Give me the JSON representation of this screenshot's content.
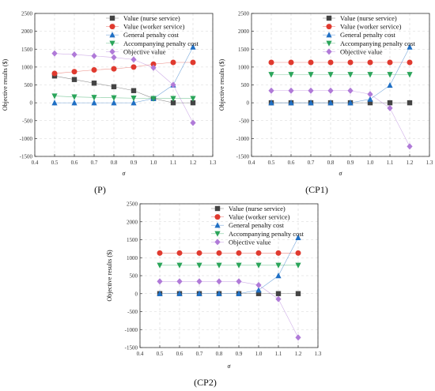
{
  "chart_data": [
    {
      "type": "line",
      "caption": "(P)",
      "xlabel": "σ",
      "ylabel": "Objective results ($)",
      "xlim": [
        0.4,
        1.3
      ],
      "ylim": [
        -1500,
        2500
      ],
      "xticks": [
        0.4,
        0.5,
        0.6,
        0.7,
        0.8,
        0.9,
        1.0,
        1.1,
        1.2,
        1.3
      ],
      "yticks": [
        -1500,
        -1000,
        -500,
        0,
        500,
        1000,
        1500,
        2000,
        2500
      ],
      "x": [
        0.5,
        0.6,
        0.7,
        0.8,
        0.9,
        1.0,
        1.1,
        1.2
      ],
      "series": [
        {
          "name": "Value (nurse service)",
          "color": "#444444",
          "marker": "square",
          "values": [
            750,
            650,
            550,
            450,
            340,
            120,
            0,
            0
          ]
        },
        {
          "name": "Value (worker service)",
          "color": "#e03a2f",
          "marker": "circle",
          "values": [
            820,
            870,
            920,
            950,
            1000,
            1080,
            1130,
            1130
          ]
        },
        {
          "name": "General penalty cost",
          "color": "#1f6fc4",
          "marker": "triangle-up",
          "values": [
            0,
            0,
            0,
            0,
            0,
            120,
            500,
            1560
          ]
        },
        {
          "name": "Accompanying penalty cost",
          "color": "#2aa55a",
          "marker": "triangle-down",
          "values": [
            190,
            165,
            150,
            140,
            130,
            120,
            120,
            120
          ]
        },
        {
          "name": "Objective value",
          "color": "#b07ad8",
          "marker": "diamond",
          "values": [
            1380,
            1350,
            1310,
            1270,
            1210,
            980,
            500,
            -560
          ]
        }
      ]
    },
    {
      "type": "line",
      "caption": "(CP1)",
      "xlabel": "σ",
      "ylabel": "Objective results ($)",
      "xlim": [
        0.4,
        1.3
      ],
      "ylim": [
        -1500,
        2500
      ],
      "xticks": [
        0.4,
        0.5,
        0.6,
        0.7,
        0.8,
        0.9,
        1.0,
        1.1,
        1.2,
        1.3
      ],
      "yticks": [
        -1500,
        -1000,
        -500,
        0,
        500,
        1000,
        1500,
        2000,
        2500
      ],
      "x": [
        0.5,
        0.6,
        0.7,
        0.8,
        0.9,
        1.0,
        1.1,
        1.2
      ],
      "series": [
        {
          "name": "Value (nurse service)",
          "color": "#444444",
          "marker": "square",
          "values": [
            0,
            0,
            0,
            0,
            0,
            0,
            0,
            0
          ]
        },
        {
          "name": "Value (worker service)",
          "color": "#e03a2f",
          "marker": "circle",
          "values": [
            1130,
            1130,
            1130,
            1130,
            1130,
            1130,
            1130,
            1130
          ]
        },
        {
          "name": "General penalty cost",
          "color": "#1f6fc4",
          "marker": "triangle-up",
          "values": [
            0,
            0,
            0,
            0,
            0,
            100,
            490,
            1560
          ]
        },
        {
          "name": "Accompanying penalty cost",
          "color": "#2aa55a",
          "marker": "triangle-down",
          "values": [
            790,
            790,
            790,
            790,
            790,
            790,
            790,
            790
          ]
        },
        {
          "name": "Objective value",
          "color": "#b07ad8",
          "marker": "diamond",
          "values": [
            340,
            340,
            340,
            340,
            340,
            240,
            -150,
            -1220
          ]
        }
      ]
    },
    {
      "type": "line",
      "caption": "(CP2)",
      "xlabel": "σ",
      "ylabel": "Objective results ($)",
      "xlim": [
        0.4,
        1.3
      ],
      "ylim": [
        -1500,
        2500
      ],
      "xticks": [
        0.4,
        0.5,
        0.6,
        0.7,
        0.8,
        0.9,
        1.0,
        1.1,
        1.2,
        1.3
      ],
      "yticks": [
        -1500,
        -1000,
        -500,
        0,
        500,
        1000,
        1500,
        2000,
        2500
      ],
      "x": [
        0.5,
        0.6,
        0.7,
        0.8,
        0.9,
        1.0,
        1.1,
        1.2
      ],
      "series": [
        {
          "name": "Value (nurse service)",
          "color": "#444444",
          "marker": "square",
          "values": [
            0,
            0,
            0,
            0,
            0,
            0,
            0,
            0
          ]
        },
        {
          "name": "Value (worker service)",
          "color": "#e03a2f",
          "marker": "circle",
          "values": [
            1130,
            1130,
            1130,
            1130,
            1130,
            1130,
            1130,
            1130
          ]
        },
        {
          "name": "General penalty cost",
          "color": "#1f6fc4",
          "marker": "triangle-up",
          "values": [
            0,
            0,
            0,
            0,
            0,
            100,
            500,
            1560
          ]
        },
        {
          "name": "Accompanying penalty cost",
          "color": "#2aa55a",
          "marker": "triangle-down",
          "values": [
            790,
            790,
            790,
            790,
            790,
            790,
            790,
            790
          ]
        },
        {
          "name": "Objective value",
          "color": "#b07ad8",
          "marker": "diamond",
          "values": [
            340,
            340,
            340,
            340,
            340,
            240,
            -150,
            -1220
          ]
        }
      ]
    }
  ]
}
